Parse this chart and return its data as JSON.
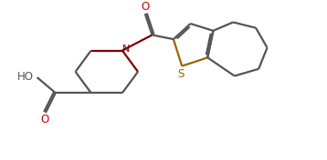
{
  "background_color": "#ffffff",
  "line_color": "#555555",
  "oxygen_color": "#cc0000",
  "sulfur_color": "#996600",
  "nitrogen_color": "#7B0000",
  "linewidth": 1.6,
  "figsize": [
    3.58,
    1.76
  ],
  "dpi": 100,
  "xlim": [
    0,
    10
  ],
  "ylim": [
    0,
    5.5
  ]
}
